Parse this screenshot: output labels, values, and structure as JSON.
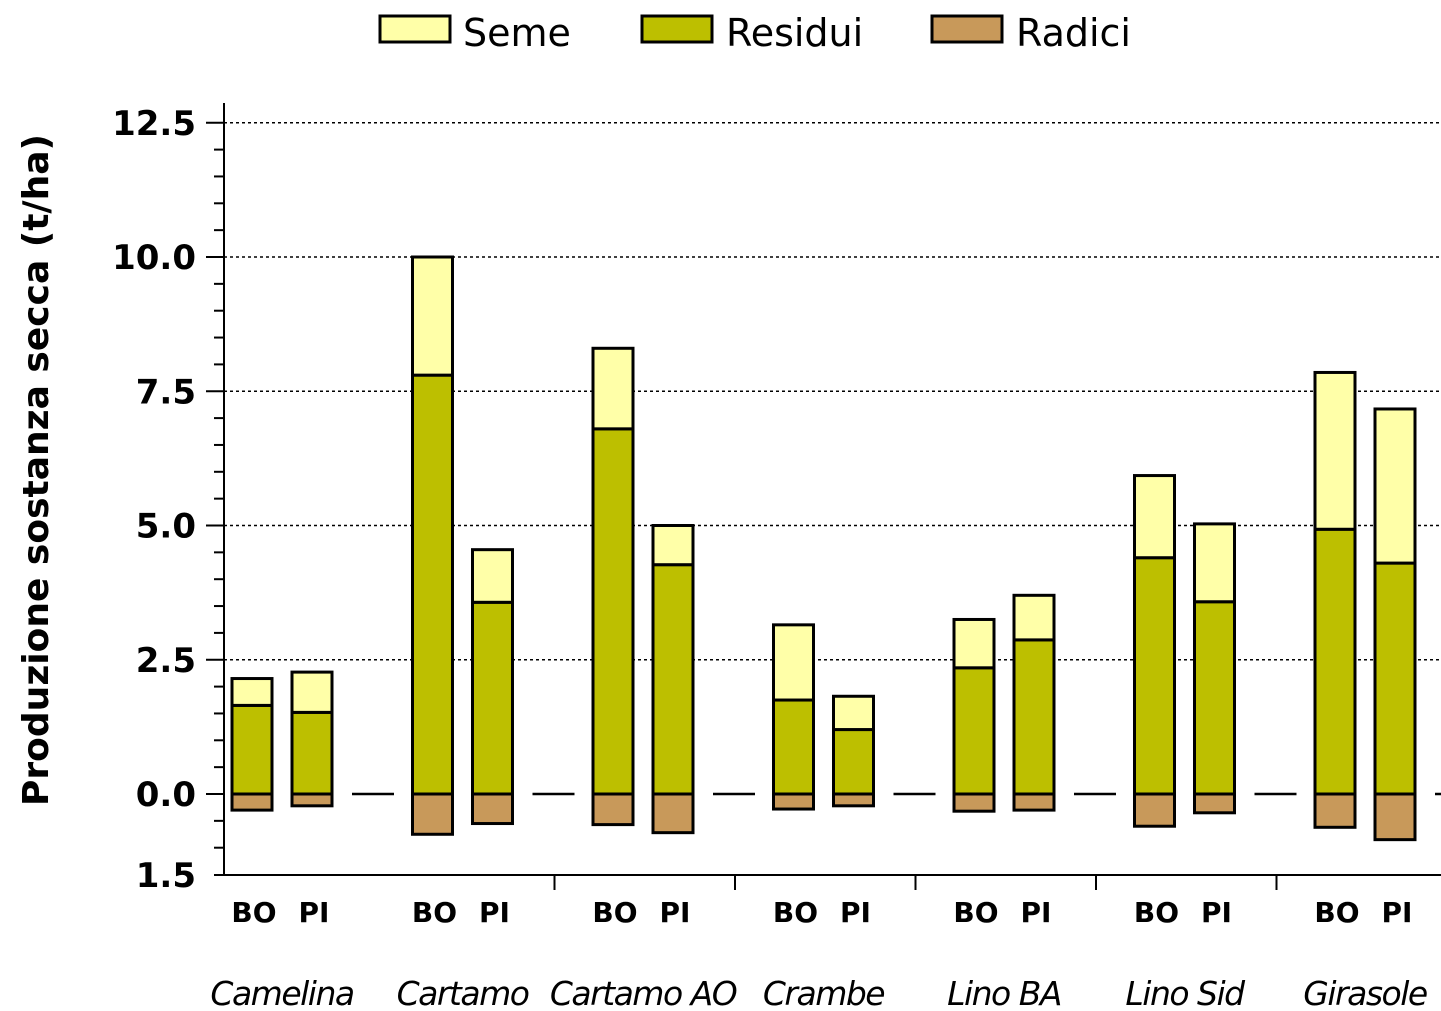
{
  "colors": {
    "seme": "#ffffa8",
    "residui": "#bdbf00",
    "radici": "#c8995a",
    "outline": "#000000",
    "grid": "#000000"
  },
  "chart_data": {
    "type": "bar",
    "stacked": true,
    "ylabel": "Produzione sostanza secca (t/ha)",
    "ylim": [
      -1.5,
      12.5
    ],
    "y_ticks": [
      {
        "value": 12.5,
        "label": "12.5"
      },
      {
        "value": 10.0,
        "label": "10.0"
      },
      {
        "value": 7.5,
        "label": "7.5"
      },
      {
        "value": 5.0,
        "label": "5.0"
      },
      {
        "value": 2.5,
        "label": "2.5"
      },
      {
        "value": 0.0,
        "label": "0.0"
      },
      {
        "value": -1.5,
        "label": "1.5"
      }
    ],
    "grid": "horizontal dotted at major ticks",
    "legend": {
      "position": "top",
      "entries": [
        "Seme",
        "Residui",
        "Radici"
      ]
    },
    "groups": [
      "Camelina",
      "Cartamo",
      "Cartamo AO",
      "Crambe",
      "Lino BA",
      "Lino Sid",
      "Girasole"
    ],
    "subcategories": [
      "BO",
      "PI"
    ],
    "series": [
      {
        "name": "Residui",
        "values": [
          [
            1.65,
            1.52
          ],
          [
            7.8,
            3.57
          ],
          [
            6.8,
            4.27
          ],
          [
            1.75,
            1.2
          ],
          [
            2.35,
            2.87
          ],
          [
            4.4,
            3.58
          ],
          [
            4.93,
            4.3
          ]
        ]
      },
      {
        "name": "Seme",
        "values": [
          [
            0.5,
            0.75
          ],
          [
            2.2,
            0.98
          ],
          [
            1.5,
            0.73
          ],
          [
            1.4,
            0.62
          ],
          [
            0.9,
            0.83
          ],
          [
            1.53,
            1.45
          ],
          [
            2.92,
            2.87
          ]
        ]
      },
      {
        "name": "Radici",
        "values": [
          [
            -0.3,
            -0.22
          ],
          [
            -0.75,
            -0.55
          ],
          [
            -0.57,
            -0.72
          ],
          [
            -0.28,
            -0.22
          ],
          [
            -0.32,
            -0.3
          ],
          [
            -0.6,
            -0.35
          ],
          [
            -0.62,
            -0.85
          ]
        ]
      }
    ]
  }
}
